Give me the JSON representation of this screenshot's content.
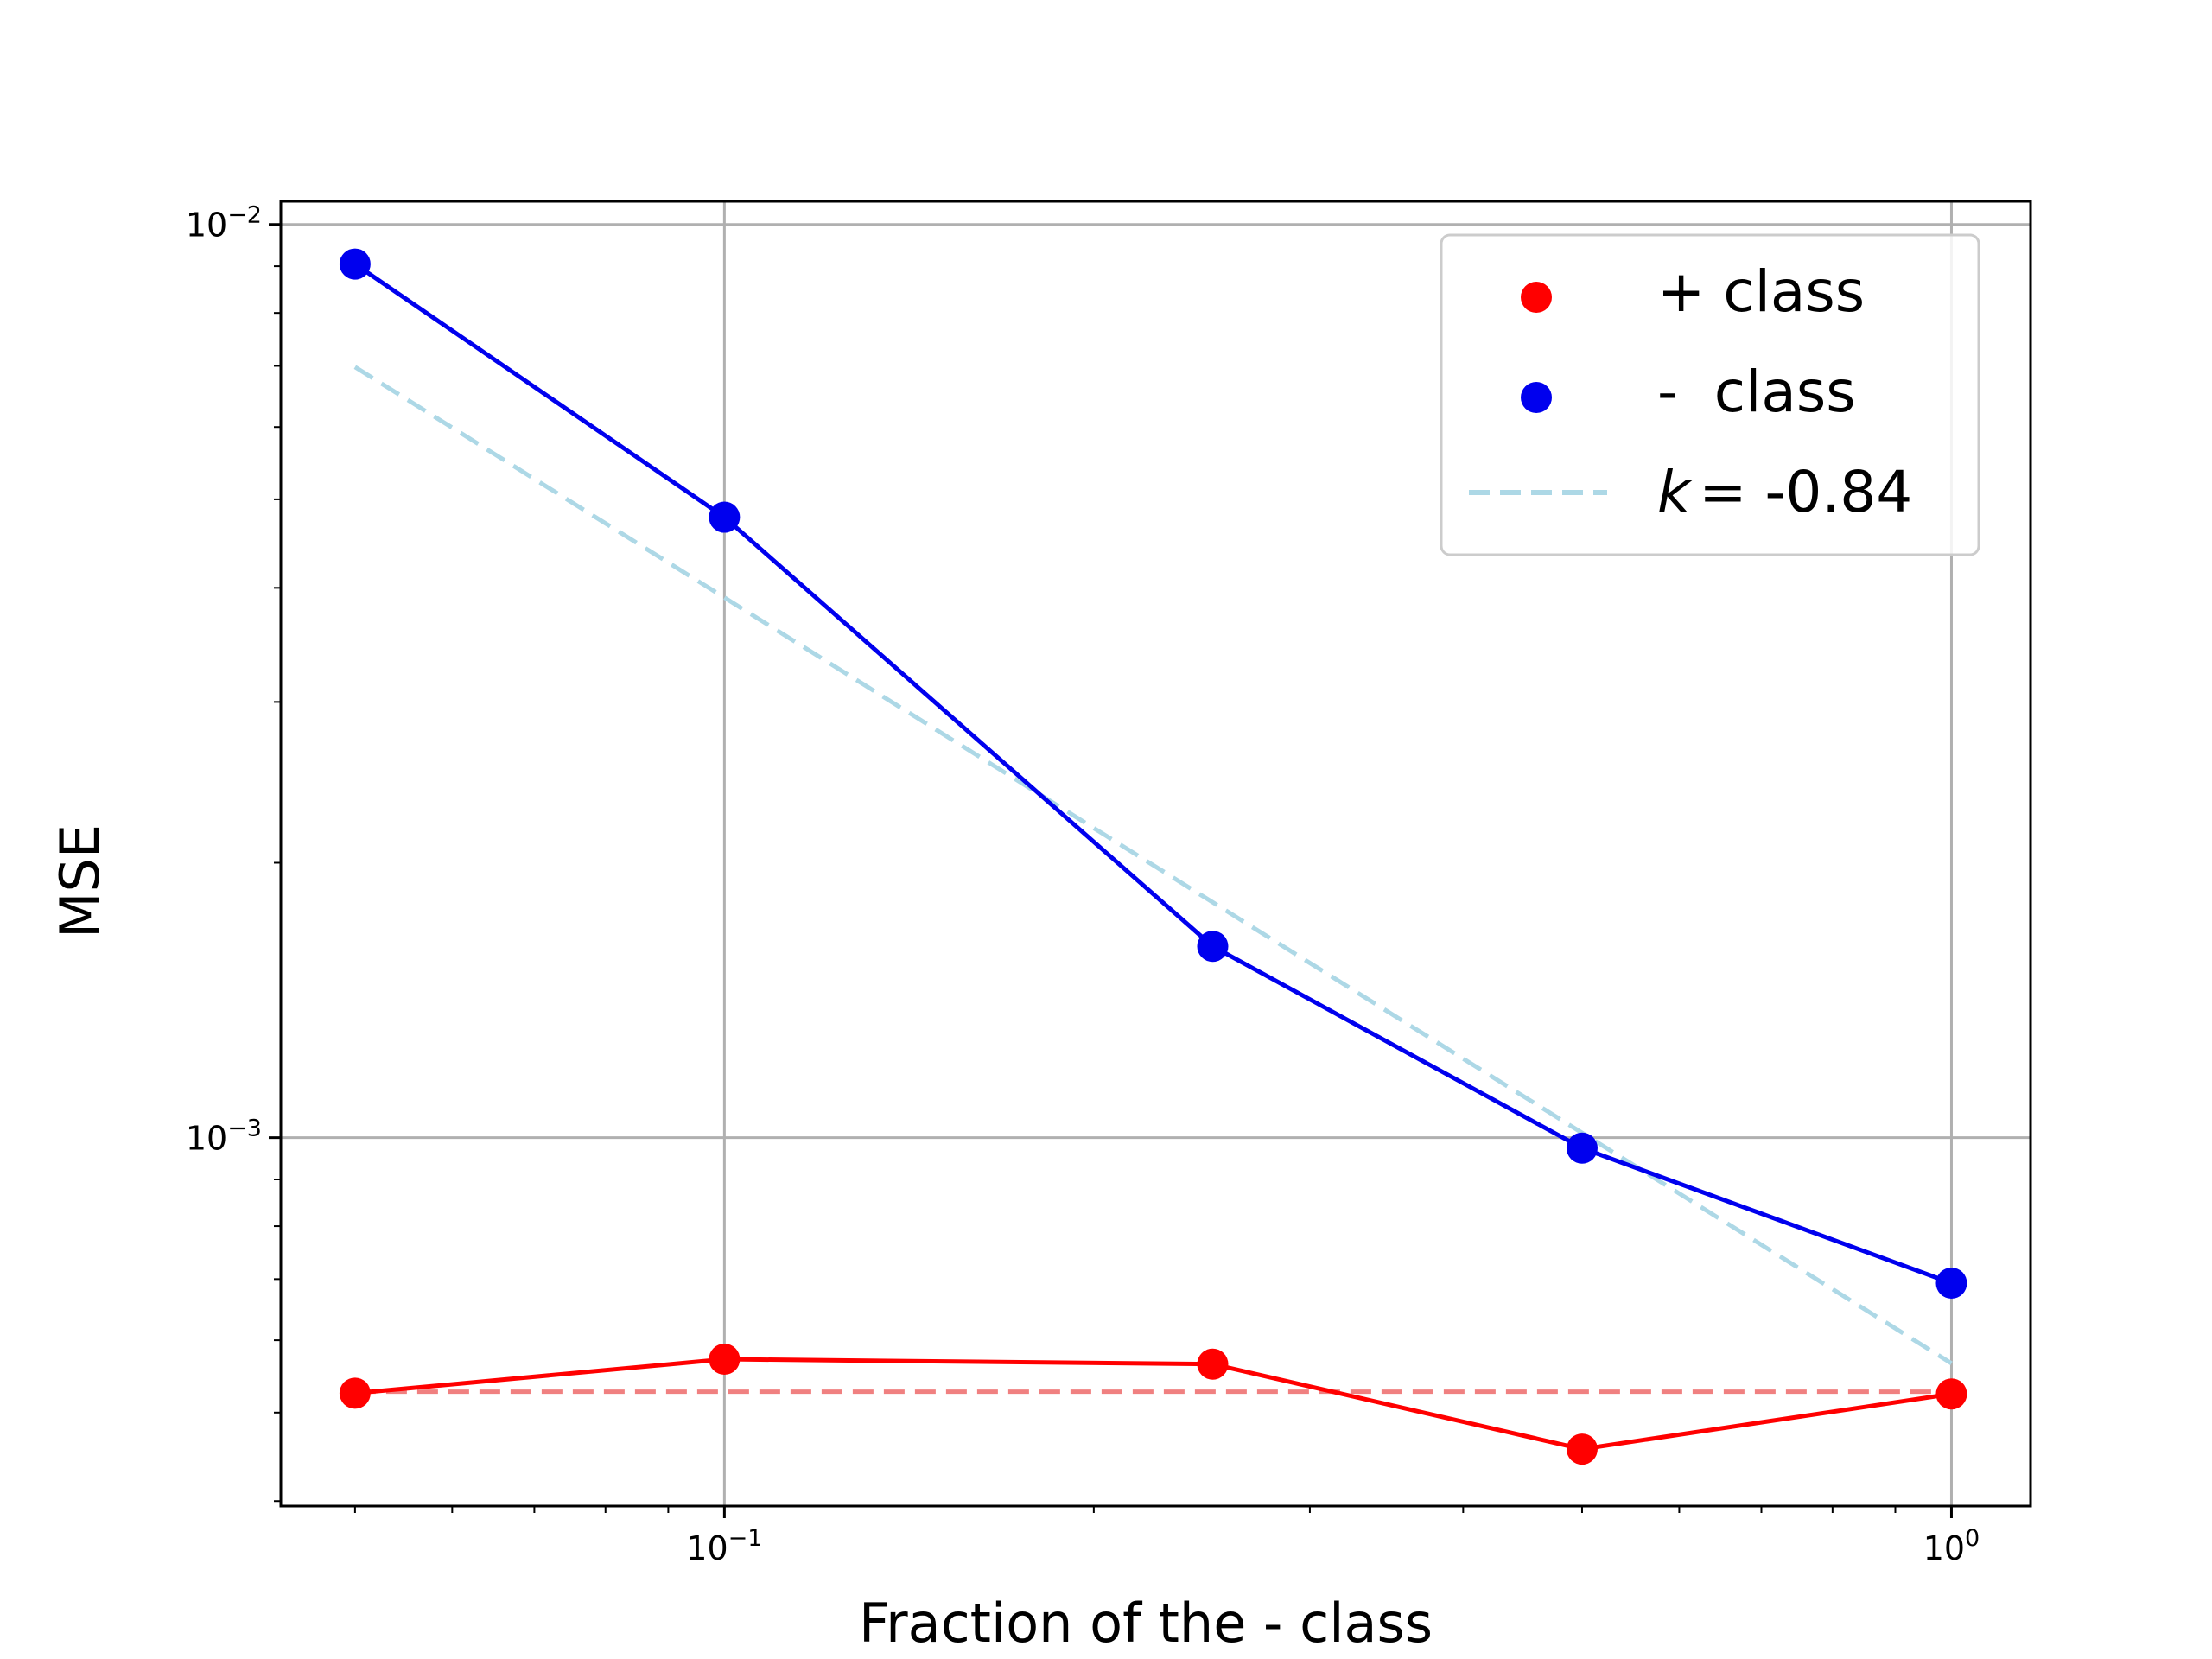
{
  "chart_data": {
    "type": "line",
    "xscale": "log",
    "yscale": "log",
    "xlabel": "Fraction of the - class",
    "ylabel": "MSE",
    "xlim": [
      0.0435,
      1.16
    ],
    "ylim": [
      0.000395,
      0.0106
    ],
    "x_ticks": [
      {
        "value": 0.1,
        "base": "10",
        "exp": "−1"
      },
      {
        "value": 1,
        "base": "10",
        "exp": "0"
      }
    ],
    "y_ticks": [
      {
        "value": 0.001,
        "base": "10",
        "exp": "−3"
      },
      {
        "value": 0.01,
        "base": "10",
        "exp": "−2"
      }
    ],
    "grid": true,
    "legend_position": "top-right",
    "series": [
      {
        "name": "+ class",
        "color": "#ff0000",
        "marker": "circle",
        "x": [
          0.05,
          0.1,
          0.25,
          0.5,
          1.0
        ],
        "y": [
          0.000525,
          0.000572,
          0.000565,
          0.000456,
          0.000524
        ]
      },
      {
        "name": "-  class",
        "color": "#0000ee",
        "marker": "circle",
        "x": [
          0.05,
          0.1,
          0.25,
          0.5,
          1.0
        ],
        "y": [
          0.00905,
          0.00478,
          0.00162,
          0.000974,
          0.000693
        ]
      }
    ],
    "reference_lines": [
      {
        "x": [
          0.05,
          1.0
        ],
        "y": [
          0.000527,
          0.000527
        ],
        "color": "#f08080",
        "dash": true,
        "legend": false
      },
      {
        "name": "= -0.84",
        "symbol": "k",
        "color": "#add8e6",
        "dash": true,
        "legend": true,
        "x": [
          0.05,
          1.0
        ],
        "y": [
          0.00698,
          0.000566
        ]
      }
    ]
  }
}
